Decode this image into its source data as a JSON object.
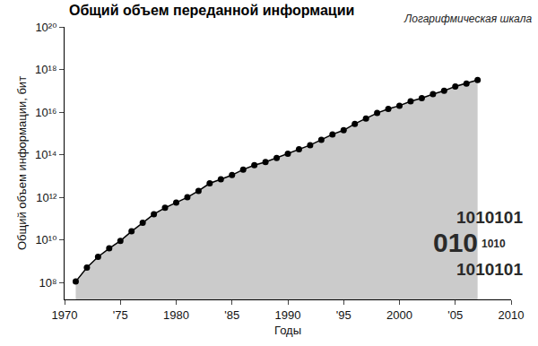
{
  "chart_data": {
    "type": "area",
    "title": "Общий объем переданной информации",
    "subtitle": "Логарифмическая шкала",
    "x_label": "Годы",
    "y_label": "Общий объем информации, бит",
    "x": [
      1971,
      1972,
      1973,
      1974,
      1975,
      1976,
      1977,
      1978,
      1979,
      1980,
      1981,
      1982,
      1983,
      1984,
      1985,
      1986,
      1987,
      1988,
      1989,
      1990,
      1991,
      1992,
      1993,
      1994,
      1995,
      1996,
      1997,
      1998,
      1999,
      2000,
      2001,
      2002,
      2003,
      2004,
      2005,
      2006,
      2007
    ],
    "values": [
      110000000.0,
      500000000.0,
      1600000000.0,
      4000000000.0,
      9000000000.0,
      25000000000.0,
      63000000000.0,
      160000000000.0,
      320000000000.0,
      560000000000.0,
      1000000000000.0,
      2000000000000.0,
      4500000000000.0,
      7000000000000.0,
      11000000000000.0,
      20000000000000.0,
      32000000000000.0,
      45000000000000.0,
      70000000000000.0,
      110000000000000.0,
      180000000000000.0,
      280000000000000.0,
      500000000000000.0,
      900000000000000.0,
      1400000000000000.0,
      2800000000000000.0,
      5000000000000000.0,
      9000000000000000.0,
      1.4e+16,
      2e+16,
      3.2e+16,
      4.5e+16,
      7e+16,
      1e+17,
      1.6e+17,
      2.2e+17,
      3.2e+17
    ],
    "color": "#000000",
    "marker": "circle",
    "log": "y",
    "grid": false,
    "xlim": [
      1970,
      2010
    ],
    "xticks": [
      1970,
      {
        "value": 1975,
        "label": "'75"
      },
      1980,
      {
        "value": 1985,
        "label": "'85"
      },
      1990,
      {
        "value": 1995,
        "label": "'95"
      },
      2000,
      {
        "value": 2005,
        "label": "'05"
      },
      2010
    ],
    "ylim": [
      16000000.0,
      1e+20
    ],
    "yticks": [
      {
        "value": 100000000.0,
        "label": "10⁸"
      },
      {
        "value": 10000000000.0,
        "label": "10¹⁰"
      },
      {
        "value": 1000000000000.0,
        "label": "10¹²"
      },
      {
        "value": 100000000000000.0,
        "label": "10¹⁴"
      },
      {
        "value": 1e+16,
        "label": "10¹⁶"
      },
      {
        "value": 1e+18,
        "label": "10¹⁸"
      },
      {
        "value": 1e+20,
        "label": "10²⁰"
      }
    ],
    "annotations": [
      "1010101",
      "010",
      "1010",
      "1010101"
    ]
  }
}
